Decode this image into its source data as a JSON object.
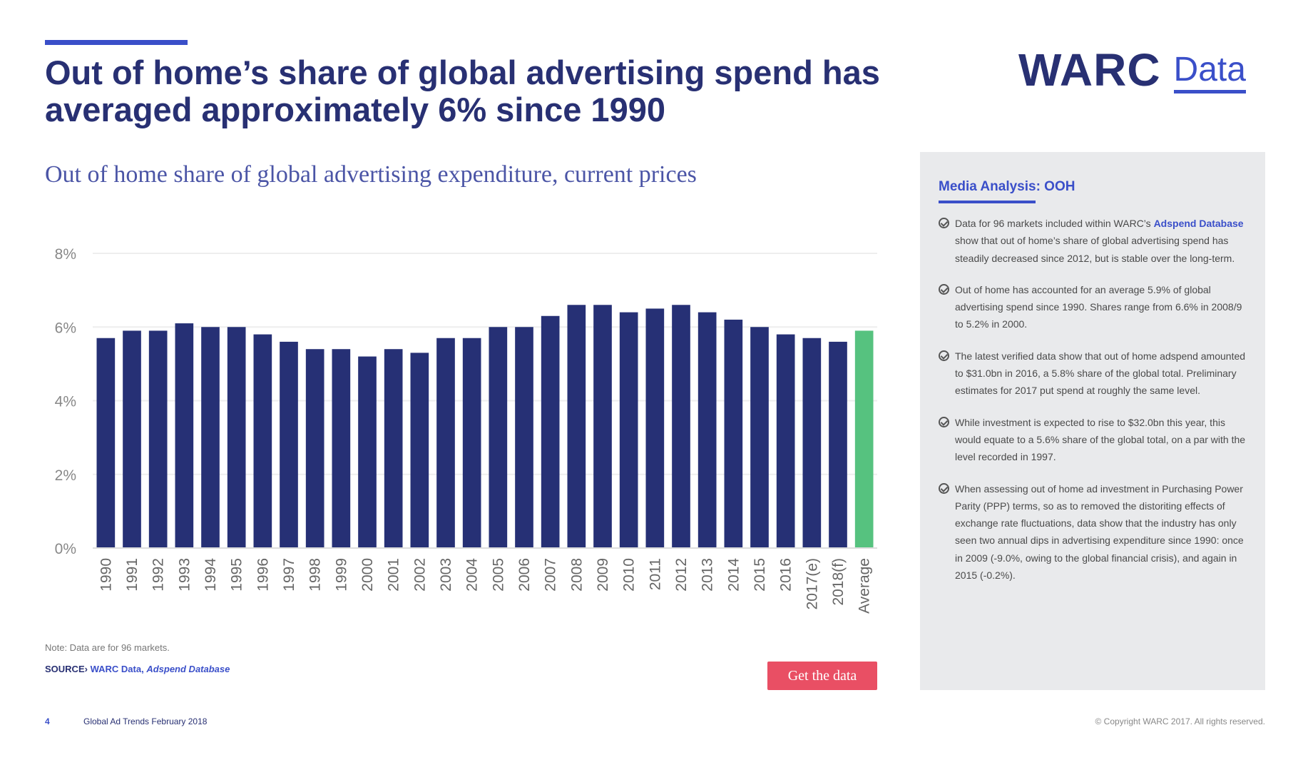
{
  "header": {
    "title": "Out of home’s share of global advertising spend has averaged approximately 6% since 1990",
    "logo_main": "WARC",
    "logo_sub": "Data"
  },
  "chart_data": {
    "type": "bar",
    "title": "Out of home share of global advertising expenditure, current prices",
    "xlabel": "",
    "ylabel": "",
    "ylim": [
      0,
      8
    ],
    "y_ticks": [
      "0%",
      "2%",
      "4%",
      "6%",
      "8%"
    ],
    "y_tick_values": [
      0,
      2,
      4,
      6,
      8
    ],
    "grid": true,
    "categories": [
      "1990",
      "1991",
      "1992",
      "1993",
      "1994",
      "1995",
      "1996",
      "1997",
      "1998",
      "1999",
      "2000",
      "2001",
      "2002",
      "2003",
      "2004",
      "2005",
      "2006",
      "2007",
      "2008",
      "2009",
      "2010",
      "2011",
      "2012",
      "2013",
      "2014",
      "2015",
      "2016",
      "2017(e)",
      "2018(f)",
      "Average"
    ],
    "values": [
      5.7,
      5.9,
      5.9,
      6.1,
      6.0,
      6.0,
      5.8,
      5.6,
      5.4,
      5.4,
      5.2,
      5.4,
      5.3,
      5.7,
      5.7,
      6.0,
      6.0,
      6.3,
      6.6,
      6.6,
      6.4,
      6.5,
      6.6,
      6.4,
      6.2,
      6.0,
      5.8,
      5.7,
      5.6,
      5.9
    ],
    "bar_color": "#263075",
    "highlight_color": "#56c27f",
    "highlight_category": "Average"
  },
  "notes": {
    "note": "Note: Data are for 96 markets.",
    "source_label": "SOURCE›",
    "source_text": "WARC Data,",
    "source_db": "Adspend Database"
  },
  "button": {
    "label": "Get the data"
  },
  "panel": {
    "title": "Media Analysis: OOH",
    "bullets": [
      {
        "pre": "Data for 96 markets included within WARC’s",
        "link": "Adspend Database",
        "post": "show that out of home’s share of global advertising spend has steadily decreased since 2012, but is stable over the long-term."
      },
      {
        "text": "Out of home has accounted for an average 5.9% of global advertising spend since 1990. Shares range from 6.6% in 2008/9 to 5.2% in 2000."
      },
      {
        "text": "The latest verified data show that out of home adspend amounted to $31.0bn in 2016, a 5.8% share of the global total. Preliminary estimates for 2017 put spend at roughly the same level."
      },
      {
        "text": "While investment is expected to rise to $32.0bn this year, this would equate to a 5.6% share of the global total, on a par with the level recorded in 1997."
      },
      {
        "text": "When assessing out of home ad investment in Purchasing Power Parity (PPP) terms, so as to removed the distoriting effects of exchange rate fluctuations, data show that the industry has only seen two annual dips in advertising expenditure since 1990: once in 2009 (-9.0%, owing to the global financial crisis), and again in 2015 (-0.2%)."
      }
    ]
  },
  "footer": {
    "page": "4",
    "publication": "Global Ad Trends February 2018",
    "copyright": "© Copyright WARC 2017. All rights reserved."
  },
  "colors": {
    "navy": "#283073",
    "accent": "#3a4fc9",
    "button": "#e94f64",
    "panel_bg": "#e9eaec"
  }
}
